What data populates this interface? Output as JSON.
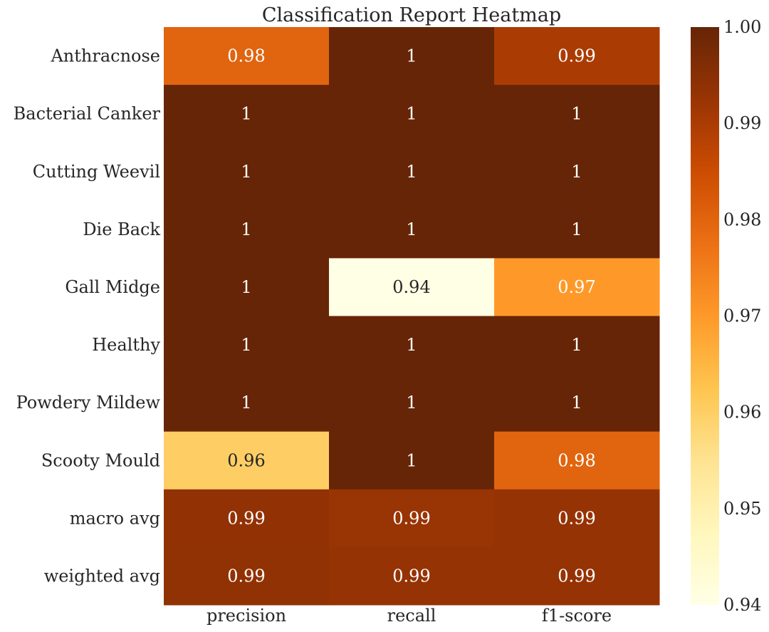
{
  "chart_data": {
    "type": "heatmap",
    "title": "Classification Report Heatmap",
    "xlabel": "",
    "ylabel": "",
    "columns": [
      "precision",
      "recall",
      "f1-score"
    ],
    "rows": [
      "Anthracnose",
      "Bacterial Canker",
      "Cutting Weevil",
      "Die Back",
      "Gall Midge",
      "Healthy",
      "Powdery Mildew",
      "Scooty Mould",
      "macro avg",
      "weighted avg"
    ],
    "values": [
      [
        0.98,
        1.0,
        0.99
      ],
      [
        1.0,
        1.0,
        1.0
      ],
      [
        1.0,
        1.0,
        1.0
      ],
      [
        1.0,
        1.0,
        1.0
      ],
      [
        1.0,
        0.94,
        0.97
      ],
      [
        1.0,
        1.0,
        1.0
      ],
      [
        1.0,
        1.0,
        1.0
      ],
      [
        0.96,
        1.0,
        0.98
      ],
      [
        0.9935,
        0.9925,
        0.9929
      ],
      [
        0.9937,
        0.9929,
        0.993
      ]
    ],
    "annotations": [
      [
        "0.98",
        "1",
        "0.99"
      ],
      [
        "1",
        "1",
        "1"
      ],
      [
        "1",
        "1",
        "1"
      ],
      [
        "1",
        "1",
        "1"
      ],
      [
        "1",
        "0.94",
        "0.97"
      ],
      [
        "1",
        "1",
        "1"
      ],
      [
        "1",
        "1",
        "1"
      ],
      [
        "0.96",
        "1",
        "0.98"
      ],
      [
        "0.99",
        "0.99",
        "0.99"
      ],
      [
        "0.99",
        "0.99",
        "0.99"
      ]
    ],
    "colormap": "YlOrBr",
    "vmin": 0.94,
    "vmax": 1.0,
    "colorbar": {
      "ticks": [
        1.0,
        0.99,
        0.98,
        0.97,
        0.96,
        0.95,
        0.94
      ],
      "tick_labels": [
        "1.00",
        "0.99",
        "0.98",
        "0.97",
        "0.96",
        "0.95",
        "0.94"
      ]
    },
    "annotation_colors": {
      "dark": "#ffffff",
      "light": "#262626"
    }
  }
}
